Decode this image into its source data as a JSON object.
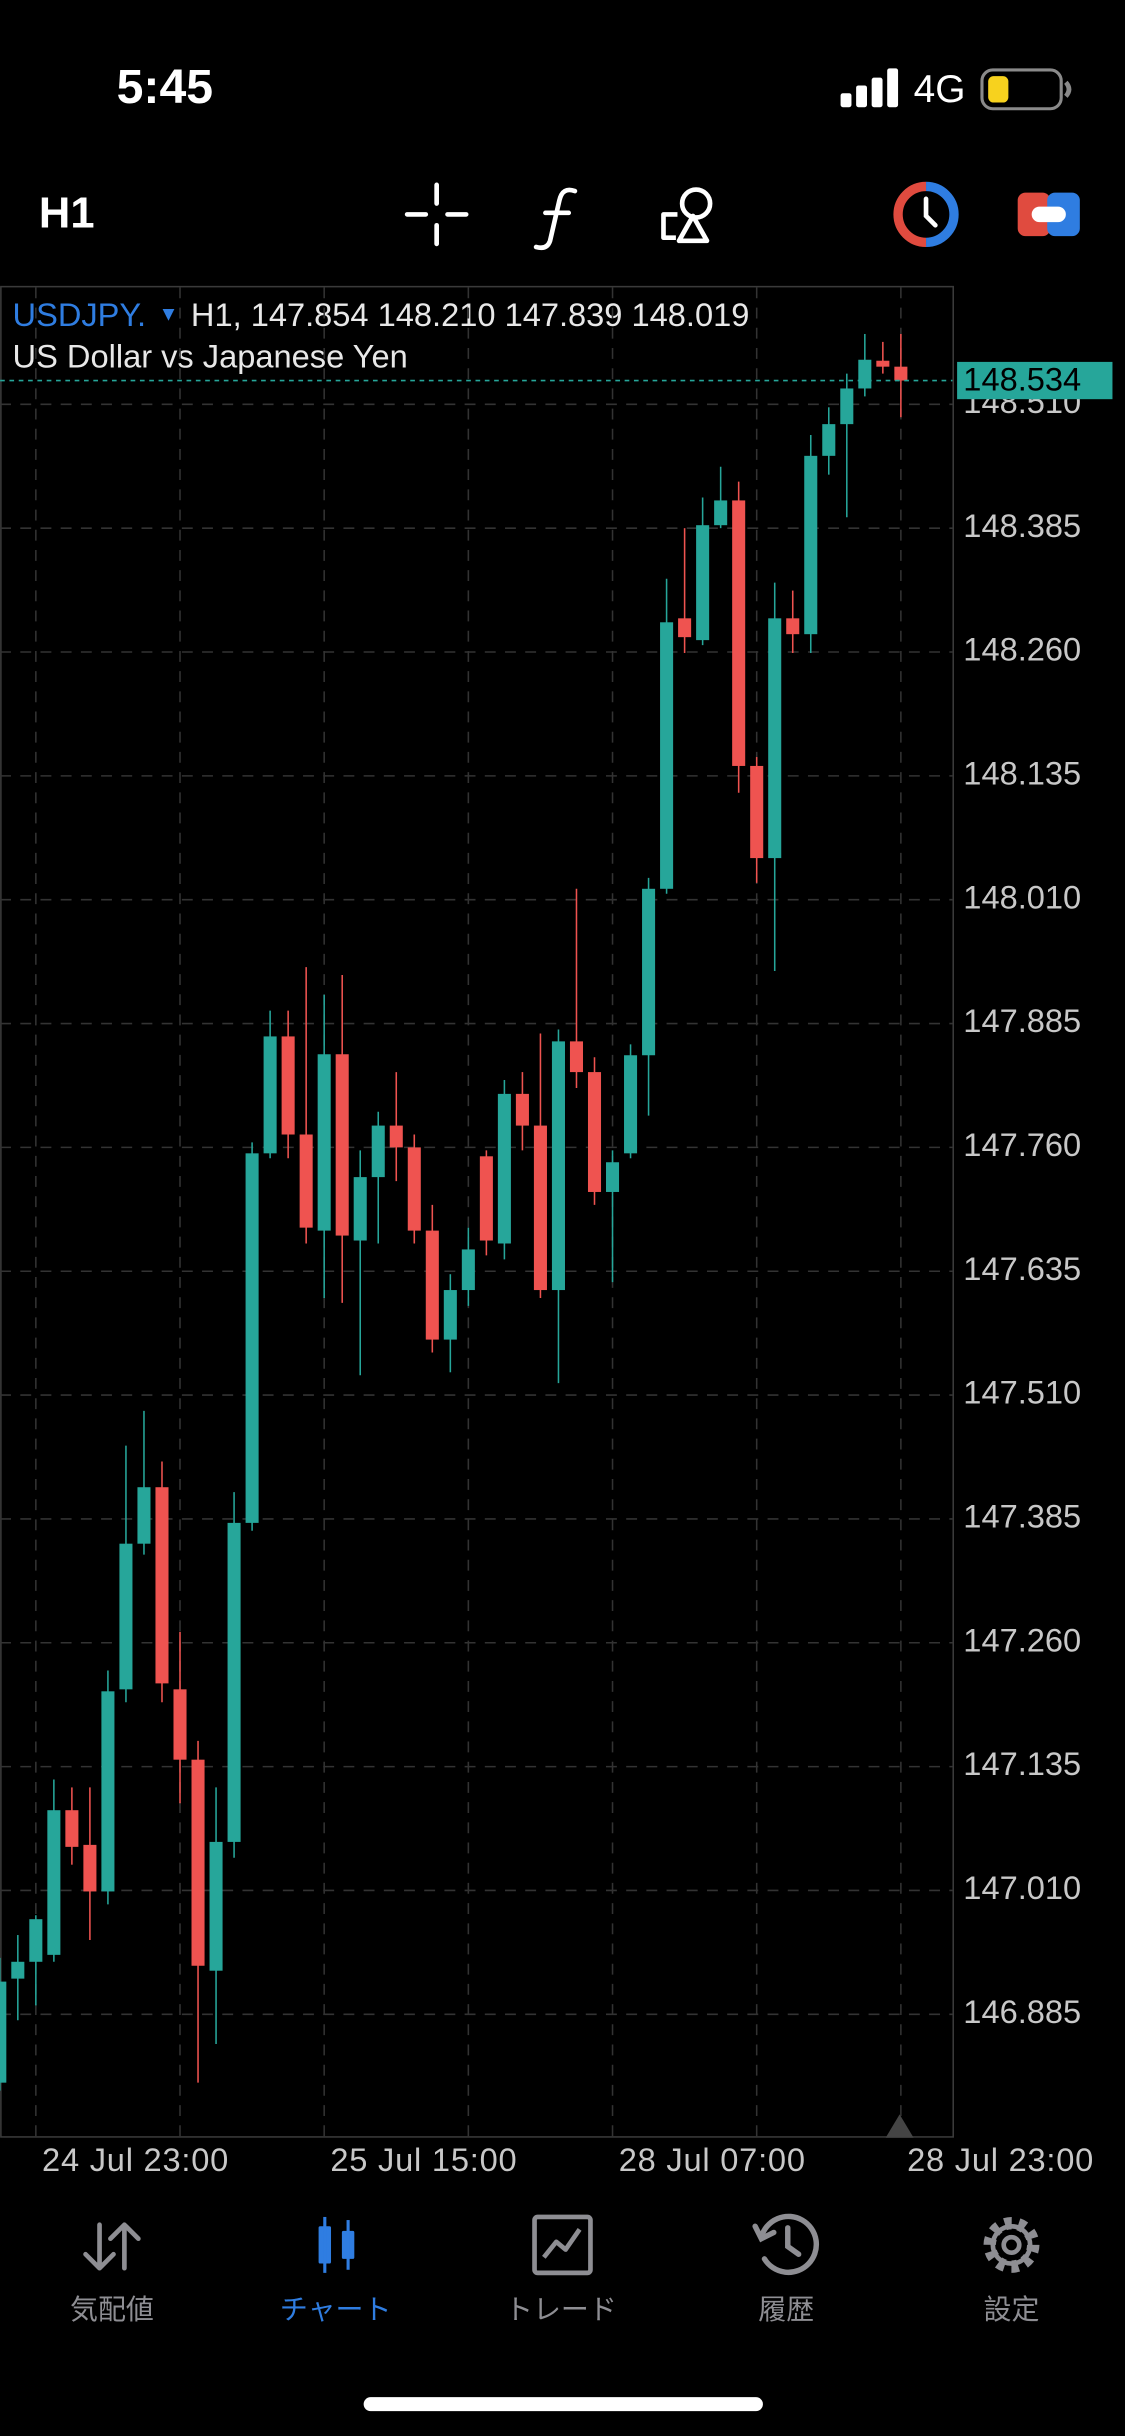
{
  "status_bar": {
    "time": "5:45",
    "network": "4G"
  },
  "toolbar": {
    "timeframe": "H1"
  },
  "chart_data": {
    "type": "candlestick",
    "symbol": "USDJPY.",
    "symbol_marker": "▼",
    "ohlc_text": "H1, 147.854 148.210 147.839 148.019",
    "subtitle": "US Dollar vs Japanese Yen",
    "categories": [
      null,
      null,
      "24 Jul 23:00",
      null,
      null,
      null,
      null,
      null,
      null,
      null,
      null,
      null,
      null,
      null,
      null,
      null,
      null,
      null,
      "25 Jul 15:00",
      null,
      null,
      null,
      null,
      null,
      null,
      null,
      null,
      null,
      null,
      null,
      null,
      null,
      null,
      null,
      "28 Jul 07:00",
      null,
      null,
      null,
      null,
      null,
      null,
      null,
      null,
      null,
      null,
      null,
      null,
      null,
      null,
      null,
      "28 Jul 23:00"
    ],
    "open": [
      146.816,
      146.921,
      146.938,
      146.945,
      147.091,
      147.056,
      147.009,
      147.213,
      147.36,
      147.417,
      147.213,
      147.142,
      146.929,
      147.059,
      147.381,
      147.754,
      147.872,
      147.773,
      147.676,
      147.854,
      147.666,
      147.73,
      147.782,
      147.76,
      147.676,
      147.566,
      147.616,
      147.751,
      147.663,
      147.814,
      147.782,
      147.616,
      147.867,
      147.836,
      147.715,
      147.754,
      147.853,
      148.021,
      148.294,
      148.272,
      148.388,
      148.413,
      148.145,
      148.052,
      148.294,
      148.278,
      148.458,
      148.49,
      148.526,
      148.554,
      148.548
    ],
    "high": [
      146.942,
      146.965,
      146.985,
      147.122,
      147.114,
      147.114,
      147.232,
      147.459,
      147.494,
      147.443,
      147.271,
      147.161,
      147.114,
      147.412,
      147.765,
      147.898,
      147.898,
      147.942,
      147.914,
      147.934,
      147.757,
      147.796,
      147.836,
      147.773,
      147.702,
      147.632,
      147.679,
      147.757,
      147.828,
      147.836,
      147.875,
      147.879,
      148.021,
      147.851,
      147.757,
      147.864,
      148.032,
      148.334,
      148.385,
      148.416,
      148.447,
      148.432,
      148.154,
      148.33,
      148.322,
      148.479,
      148.507,
      148.541,
      148.581,
      148.573,
      148.581
    ],
    "low": [
      146.808,
      146.879,
      146.894,
      146.938,
      147.036,
      146.96,
      146.996,
      147.2,
      147.349,
      147.2,
      147.098,
      146.816,
      146.855,
      147.043,
      147.373,
      147.749,
      147.749,
      147.663,
      147.608,
      147.603,
      147.53,
      147.663,
      147.726,
      147.663,
      147.553,
      147.533,
      147.6,
      147.651,
      147.647,
      147.757,
      147.608,
      147.522,
      147.82,
      147.702,
      147.624,
      147.749,
      147.792,
      148.016,
      148.259,
      148.267,
      148.385,
      148.118,
      148.027,
      147.938,
      148.259,
      148.259,
      148.439,
      148.396,
      148.518,
      148.541,
      148.497
    ],
    "close": [
      146.918,
      146.938,
      146.981,
      147.091,
      147.054,
      147.009,
      147.211,
      147.36,
      147.417,
      147.219,
      147.142,
      146.934,
      147.059,
      147.381,
      147.754,
      147.872,
      147.773,
      147.679,
      147.854,
      147.671,
      147.73,
      147.782,
      147.76,
      147.676,
      147.566,
      147.616,
      147.657,
      147.666,
      147.814,
      147.782,
      147.616,
      147.867,
      147.836,
      147.715,
      147.745,
      147.853,
      148.021,
      148.29,
      148.275,
      148.388,
      148.413,
      148.145,
      148.052,
      148.294,
      148.278,
      148.458,
      148.49,
      148.526,
      148.555,
      148.548,
      148.534
    ],
    "up_color": "#26a69a",
    "down_color": "#ef5350",
    "ylim": [
      146.762,
      148.628
    ],
    "yticks": [
      {
        "value": 148.51,
        "label": "148.510"
      },
      148.385,
      {
        "value": 148.26,
        "label": "148.260"
      },
      148.135,
      {
        "value": 148.01,
        "label": "148.010"
      },
      147.885,
      {
        "value": 147.76,
        "label": "147.760"
      },
      147.635,
      {
        "value": 147.51,
        "label": "147.510"
      },
      147.385,
      {
        "value": 147.26,
        "label": "147.260"
      },
      147.135,
      {
        "value": 147.01,
        "label": "147.010"
      },
      146.885
    ],
    "grid": true,
    "last_price": 148.534
  },
  "tab_bar": {
    "tabs": [
      {
        "label": "気配値"
      },
      {
        "label": "チャート"
      },
      {
        "label": "トレード"
      },
      {
        "label": "履歴"
      },
      {
        "label": "設定"
      }
    ],
    "active": 1
  }
}
